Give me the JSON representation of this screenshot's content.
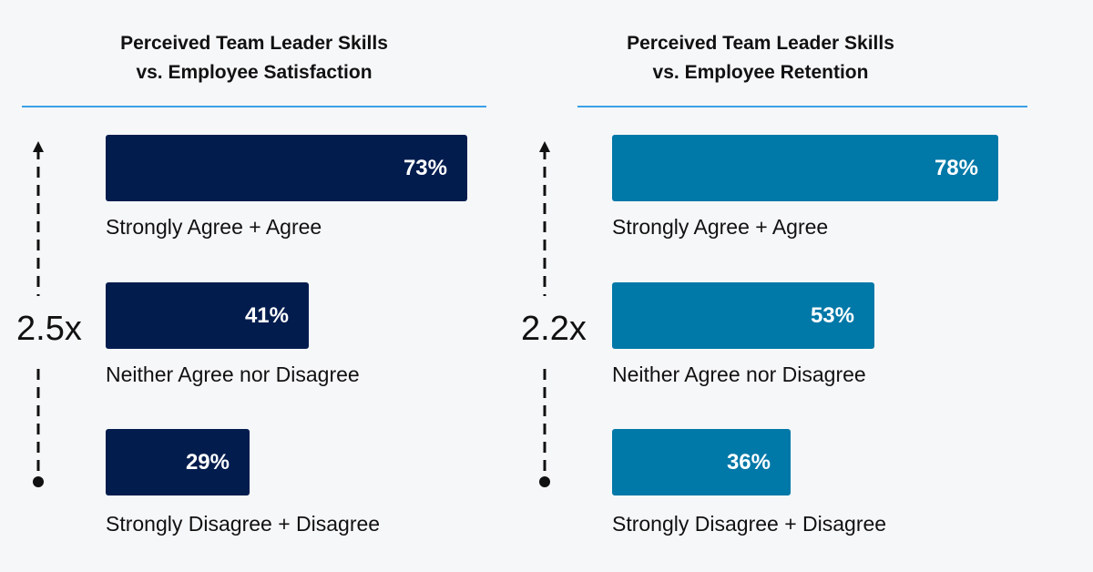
{
  "chart_data": [
    {
      "type": "bar",
      "orientation": "horizontal",
      "title_lines": [
        "Perceived Team Leader Skills",
        "vs. Employee Satisfaction"
      ],
      "categories": [
        "Strongly Agree + Agree",
        "Neither Agree nor Disagree",
        "Strongly Disagree + Disagree"
      ],
      "values": [
        73,
        41,
        29
      ],
      "value_labels": [
        "73%",
        "41%",
        "29%"
      ],
      "annotation": "2.5x",
      "xlim": [
        0,
        100
      ],
      "color": "#021c4e"
    },
    {
      "type": "bar",
      "orientation": "horizontal",
      "title_lines": [
        "Perceived Team Leader Skills",
        "vs. Employee Retention"
      ],
      "categories": [
        "Strongly Agree + Agree",
        "Neither Agree nor Disagree",
        "Strongly Disagree + Disagree"
      ],
      "values": [
        78,
        53,
        36
      ],
      "value_labels": [
        "78%",
        "53%",
        "36%"
      ],
      "annotation": "2.2x",
      "xlim": [
        0,
        100
      ],
      "color": "#0078a8"
    }
  ]
}
